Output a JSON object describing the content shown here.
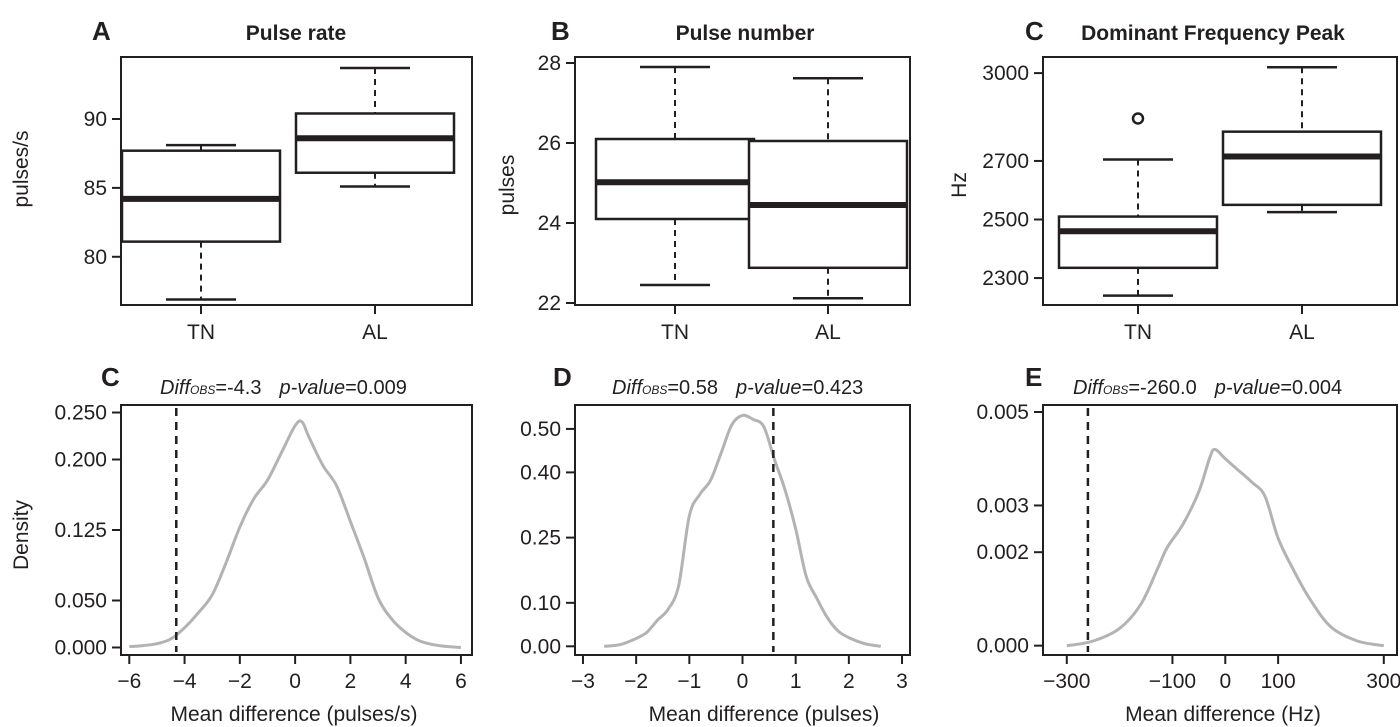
{
  "figure": {
    "colors": {
      "ink": "#231f20",
      "density_curve": "#b3b3b3",
      "observed_line": "#231f20"
    }
  },
  "chart_data": [
    {
      "type": "boxplot",
      "panel_letter": "A",
      "title": "Pulse rate",
      "ylabel": "pulses/s",
      "xlabel": "",
      "ylim": [
        76.5,
        94.5
      ],
      "yticks": [
        80,
        85,
        90
      ],
      "categories": [
        "TN",
        "AL"
      ],
      "boxes": [
        {
          "category": "TN",
          "whisker_low": 76.9,
          "q1": 81.1,
          "median": 84.2,
          "q3": 87.7,
          "whisker_high": 88.1,
          "outliers": []
        },
        {
          "category": "AL",
          "whisker_low": 85.1,
          "q1": 86.1,
          "median": 88.6,
          "q3": 90.4,
          "whisker_high": 93.7,
          "outliers": []
        }
      ]
    },
    {
      "type": "boxplot",
      "panel_letter": "B",
      "title": "Pulse number",
      "ylabel": "pulses",
      "xlabel": "",
      "ylim": [
        21.95,
        28.15
      ],
      "yticks": [
        22,
        24,
        26,
        28
      ],
      "categories": [
        "TN",
        "AL"
      ],
      "boxes": [
        {
          "category": "TN",
          "whisker_low": 22.45,
          "q1": 24.1,
          "median": 25.02,
          "q3": 26.1,
          "whisker_high": 27.9,
          "outliers": []
        },
        {
          "category": "AL",
          "whisker_low": 22.12,
          "q1": 22.88,
          "median": 24.45,
          "q3": 26.05,
          "whisker_high": 27.62,
          "outliers": []
        }
      ]
    },
    {
      "type": "boxplot",
      "panel_letter": "C",
      "title": "Dominant Frequency Peak",
      "ylabel": "Hz",
      "xlabel": "",
      "ylim": [
        2208,
        3055
      ],
      "yticks": [
        2300,
        2500,
        2700,
        3000
      ],
      "categories": [
        "TN",
        "AL"
      ],
      "boxes": [
        {
          "category": "TN",
          "whisker_low": 2240,
          "q1": 2335,
          "median": 2460,
          "q3": 2510,
          "whisker_high": 2705,
          "outliers": [
            2845
          ]
        },
        {
          "category": "AL",
          "whisker_low": 2525,
          "q1": 2550,
          "median": 2715,
          "q3": 2800,
          "whisker_high": 3020,
          "outliers": []
        }
      ]
    },
    {
      "type": "line",
      "panel_letter": "C",
      "xlabel": "Mean difference (pulses/s)",
      "ylabel": "Density",
      "xlim": [
        -6.3,
        6.4
      ],
      "ylim": [
        -0.008,
        0.258
      ],
      "xticks": [
        -6,
        -4,
        -2,
        0,
        2,
        4,
        6
      ],
      "yticks": [
        0.0,
        0.05,
        0.125,
        0.2,
        0.25
      ],
      "ytick_labels": [
        "0.000",
        "0.050",
        "0.125",
        "0.200",
        "0.250"
      ],
      "annotation": {
        "diff_label": "Diff",
        "diff_sub": "OBS",
        "diff_value": "=-4.3",
        "p_label": "p-value",
        "p_value": "=0.009"
      },
      "observed": -4.3,
      "x": [
        -6.0,
        -5.5,
        -5.0,
        -4.5,
        -4.0,
        -3.5,
        -3.0,
        -2.5,
        -2.0,
        -1.5,
        -1.0,
        -0.5,
        0.0,
        0.25,
        0.5,
        1.0,
        1.5,
        2.0,
        2.5,
        3.0,
        3.5,
        4.0,
        4.5,
        5.0,
        5.5,
        6.0
      ],
      "y": [
        0.001,
        0.002,
        0.004,
        0.009,
        0.021,
        0.037,
        0.056,
        0.09,
        0.128,
        0.158,
        0.178,
        0.207,
        0.236,
        0.24,
        0.224,
        0.194,
        0.172,
        0.134,
        0.095,
        0.053,
        0.03,
        0.016,
        0.007,
        0.003,
        0.001,
        0.0
      ]
    },
    {
      "type": "line",
      "panel_letter": "D",
      "xlabel": "Mean difference (pulses)",
      "ylabel": "",
      "xlim": [
        -3.15,
        3.15
      ],
      "ylim": [
        -0.02,
        0.555
      ],
      "xticks": [
        -3,
        -2,
        -1,
        0,
        1,
        2,
        3
      ],
      "yticks": [
        0.0,
        0.1,
        0.25,
        0.4,
        0.5
      ],
      "ytick_labels": [
        "0.00",
        "0.10",
        "0.25",
        "0.40",
        "0.50"
      ],
      "annotation": {
        "diff_label": "Diff",
        "diff_sub": "OBS",
        "diff_value": "=0.58",
        "p_label": "p-value",
        "p_value": "=0.423"
      },
      "observed": 0.58,
      "x": [
        -2.6,
        -2.3,
        -2.0,
        -1.8,
        -1.6,
        -1.4,
        -1.2,
        -1.0,
        -0.8,
        -0.6,
        -0.4,
        -0.2,
        0.0,
        0.2,
        0.4,
        0.6,
        0.8,
        1.0,
        1.2,
        1.4,
        1.6,
        1.8,
        2.0,
        2.3,
        2.6
      ],
      "y": [
        0.0,
        0.004,
        0.018,
        0.032,
        0.06,
        0.085,
        0.14,
        0.3,
        0.35,
        0.382,
        0.445,
        0.51,
        0.531,
        0.522,
        0.505,
        0.43,
        0.36,
        0.27,
        0.16,
        0.11,
        0.065,
        0.035,
        0.02,
        0.006,
        0.0
      ]
    },
    {
      "type": "line",
      "panel_letter": "E",
      "xlabel": "Mean difference (Hz)",
      "ylabel": "",
      "xlim": [
        -345,
        325
      ],
      "ylim": [
        -0.0002,
        0.00515
      ],
      "xticks": [
        -300,
        -100,
        0,
        100,
        300
      ],
      "yticks": [
        0.0,
        0.002,
        0.003,
        0.005
      ],
      "ytick_labels": [
        "0.000",
        "0.002",
        "0.003",
        "0.005"
      ],
      "annotation": {
        "diff_label": "Diff",
        "diff_sub": "OBS",
        "diff_value": "=-260.0",
        "p_label": "p-value",
        "p_value": "=0.004"
      },
      "observed": -260.0,
      "x": [
        -300,
        -250,
        -200,
        -160,
        -130,
        -110,
        -80,
        -50,
        -30,
        -20,
        0,
        20,
        50,
        75,
        100,
        130,
        160,
        200,
        250,
        300
      ],
      "y": [
        0.0,
        0.0001,
        0.00037,
        0.00088,
        0.0016,
        0.0021,
        0.0026,
        0.0033,
        0.004,
        0.0042,
        0.004,
        0.0038,
        0.0035,
        0.0032,
        0.0023,
        0.0016,
        0.001,
        0.0004,
        0.0001,
        0.0
      ]
    }
  ]
}
